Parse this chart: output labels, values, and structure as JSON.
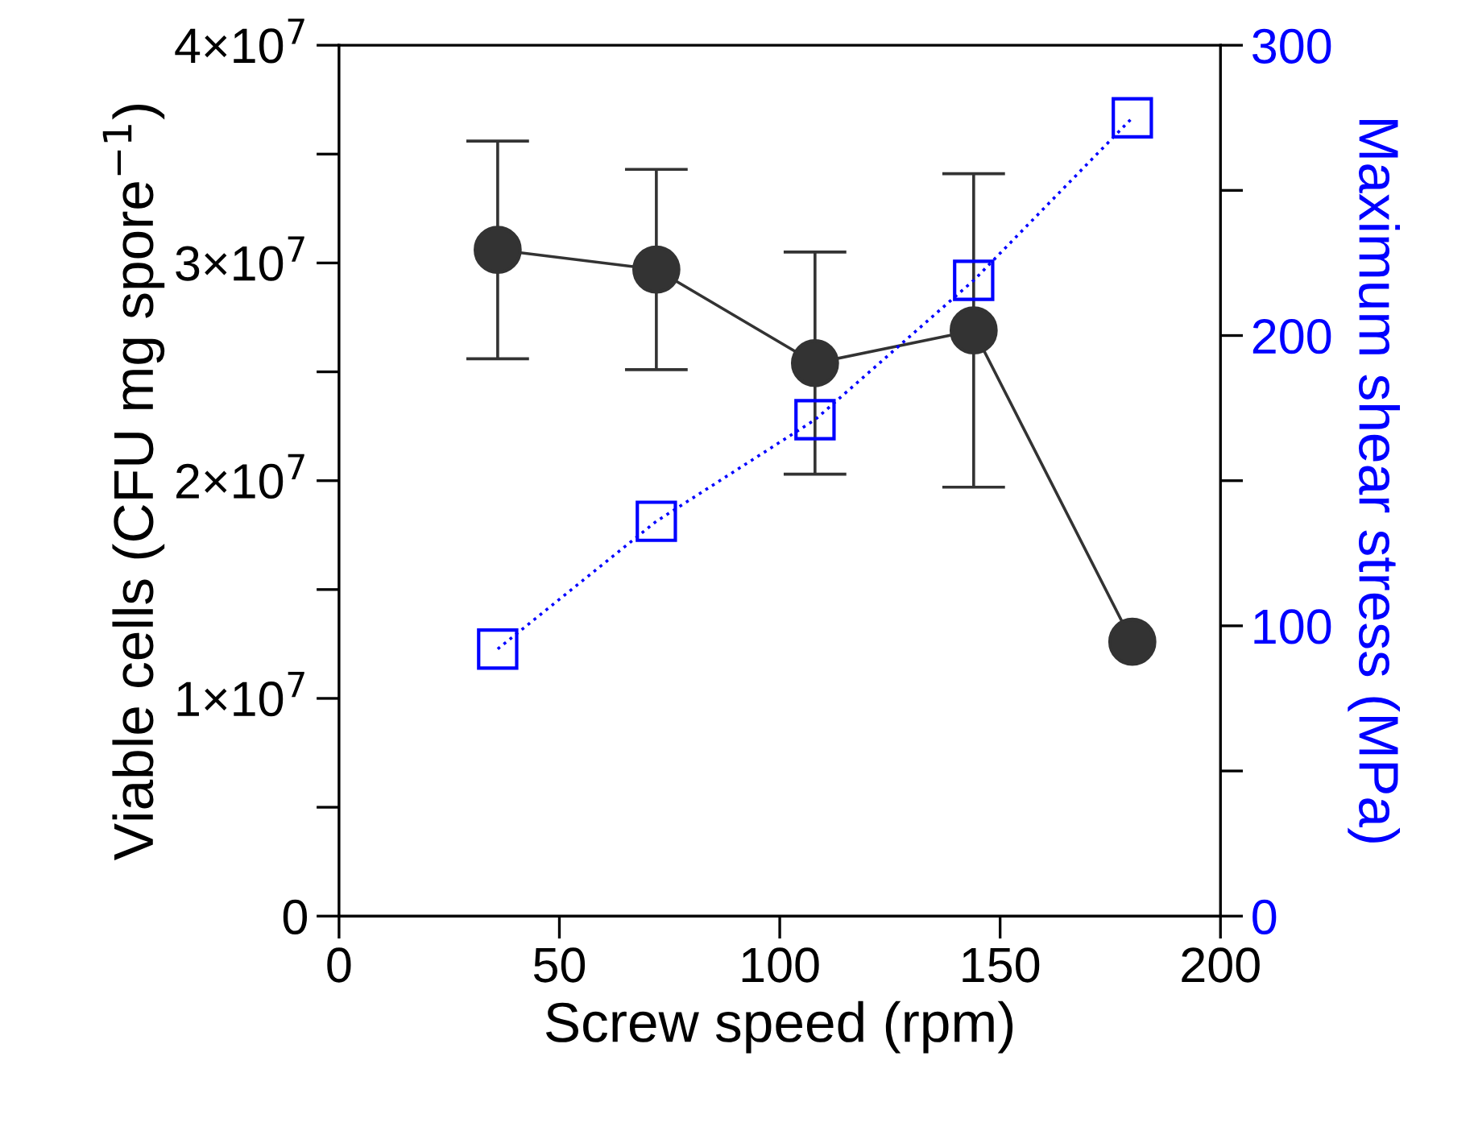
{
  "chart_data": {
    "type": "line",
    "xlabel": "Screw speed (rpm)",
    "ylabel": "Viable cells (CFU mg spore$^{−1}$)",
    "y2label": "Maximum shear stress (MPa)",
    "x": [
      36,
      72,
      108,
      144,
      180
    ],
    "series": [
      {
        "color": "#333333",
        "marker": "circle",
        "line_style": "solid",
        "values": [
          30600000,
          29700000,
          25400000,
          26900000,
          12600000
        ],
        "errors": [
          5000000,
          4600000,
          5100000,
          7200000,
          null
        ]
      },
      {
        "color": "#0000ff",
        "marker": "square",
        "line_style": "dotted",
        "axis": "y2",
        "values": [
          92,
          136,
          171,
          219,
          275
        ]
      }
    ],
    "xlim": [
      0,
      200
    ],
    "xticks": [
      0,
      50,
      100,
      150,
      200
    ],
    "ylim": [
      0,
      40000000
    ],
    "yticks": [
      {
        "value": 0,
        "label": "0"
      },
      {
        "value": 5000000,
        "label": null
      },
      {
        "value": 10000000,
        "label": "1×10$^{7}$"
      },
      {
        "value": 15000000,
        "label": null
      },
      {
        "value": 20000000,
        "label": "2×10$^{7}$"
      },
      {
        "value": 25000000,
        "label": null
      },
      {
        "value": 30000000,
        "label": "3×10$^{7}$"
      },
      {
        "value": 35000000,
        "label": null
      },
      {
        "value": 40000000,
        "label": "4×10$^{7}$"
      }
    ],
    "y2lim": [
      0,
      300
    ],
    "y2ticks": [
      0,
      {
        "value": 50,
        "label": null
      },
      100,
      {
        "value": 150,
        "label": null
      },
      200,
      {
        "value": 250,
        "label": null
      },
      300
    ],
    "grid": false,
    "legend": false
  }
}
